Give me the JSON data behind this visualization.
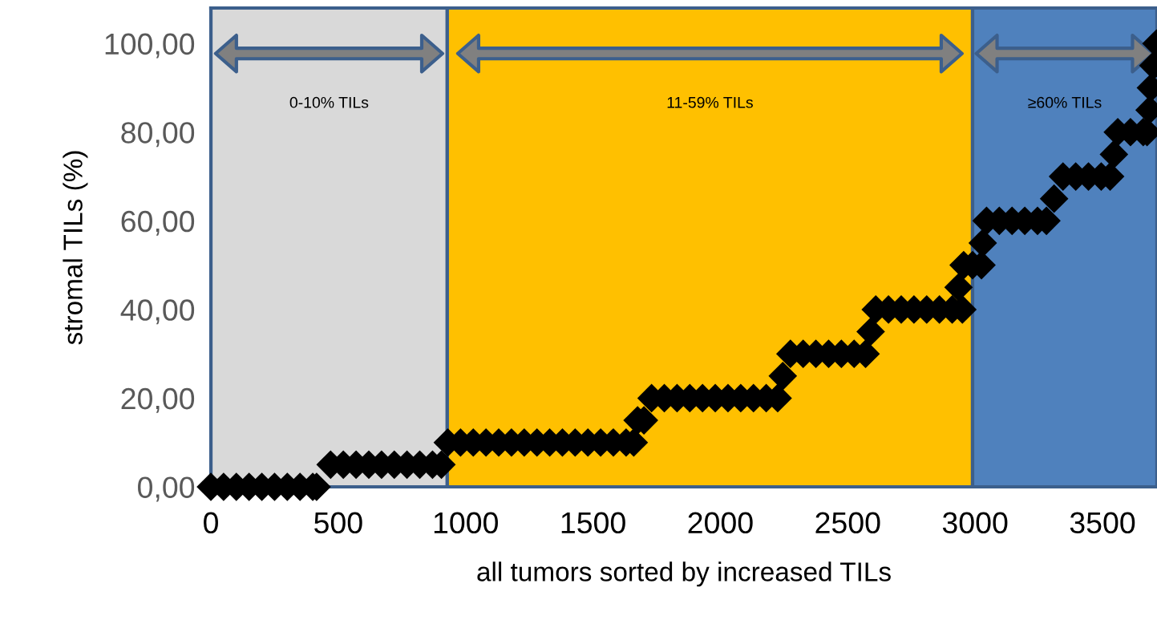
{
  "chart_data": {
    "type": "scatter",
    "xlabel": "all tumors sorted by increased TILs",
    "ylabel": "stromal TILs (%)",
    "xlim": [
      0,
      3714
    ],
    "xticks": [
      0,
      500,
      1000,
      1500,
      2000,
      2500,
      3000,
      3500
    ],
    "ylim": [
      0,
      108
    ],
    "yticks": [
      {
        "value": 0,
        "label": "0,00"
      },
      {
        "value": 20,
        "label": "20,00"
      },
      {
        "value": 40,
        "label": "40,00"
      },
      {
        "value": 60,
        "label": "60,00"
      },
      {
        "value": 80,
        "label": "80,00"
      },
      {
        "value": 100,
        "label": "100,00"
      }
    ],
    "marker": "diamond",
    "grid": false,
    "bands": [
      {
        "axis": "x",
        "from": 0,
        "to": 928,
        "label": "0-10% TILs",
        "color": "#d9d9d9"
      },
      {
        "axis": "x",
        "from": 928,
        "to": 2990,
        "label": "11-59% TILs",
        "color": "#ffc000"
      },
      {
        "axis": "x",
        "from": 2990,
        "to": 3714,
        "label": "≥60% TILs",
        "color": "#4f81bd"
      }
    ],
    "series": [
      {
        "color": "#000000",
        "x": [
          0,
          50,
          100,
          150,
          200,
          250,
          300,
          350,
          400,
          415,
          470,
          520,
          570,
          620,
          670,
          720,
          770,
          820,
          870,
          905,
          930,
          980,
          1030,
          1080,
          1130,
          1180,
          1230,
          1280,
          1330,
          1380,
          1430,
          1480,
          1530,
          1580,
          1630,
          1660,
          1675,
          1700,
          1730,
          1780,
          1830,
          1880,
          1930,
          1980,
          2030,
          2080,
          2130,
          2180,
          2225,
          2245,
          2275,
          2325,
          2375,
          2425,
          2475,
          2525,
          2570,
          2590,
          2610,
          2660,
          2710,
          2760,
          2810,
          2860,
          2910,
          2950,
          2935,
          2955,
          2990,
          3025,
          3030,
          3045,
          3095,
          3145,
          3195,
          3245,
          3280,
          3310,
          3345,
          3395,
          3445,
          3495,
          3530,
          3545,
          3560,
          3610,
          3660,
          3675,
          3685,
          3690,
          3700,
          3712
        ],
        "values": [
          0,
          0,
          0,
          0,
          0,
          0,
          0,
          0,
          0,
          0,
          5,
          5,
          5,
          5,
          5,
          5,
          5,
          5,
          5,
          5,
          10,
          10,
          10,
          10,
          10,
          10,
          10,
          10,
          10,
          10,
          10,
          10,
          10,
          10,
          10,
          10,
          15,
          15,
          20,
          20,
          20,
          20,
          20,
          20,
          20,
          20,
          20,
          20,
          20,
          25,
          30,
          30,
          30,
          30,
          30,
          30,
          30,
          35,
          40,
          40,
          40,
          40,
          40,
          40,
          40,
          40,
          45,
          50,
          50,
          50,
          55,
          60,
          60,
          60,
          60,
          60,
          60,
          65,
          70,
          70,
          70,
          70,
          70,
          75,
          80,
          80,
          80,
          80,
          85,
          90,
          95,
          100
        ]
      }
    ]
  }
}
